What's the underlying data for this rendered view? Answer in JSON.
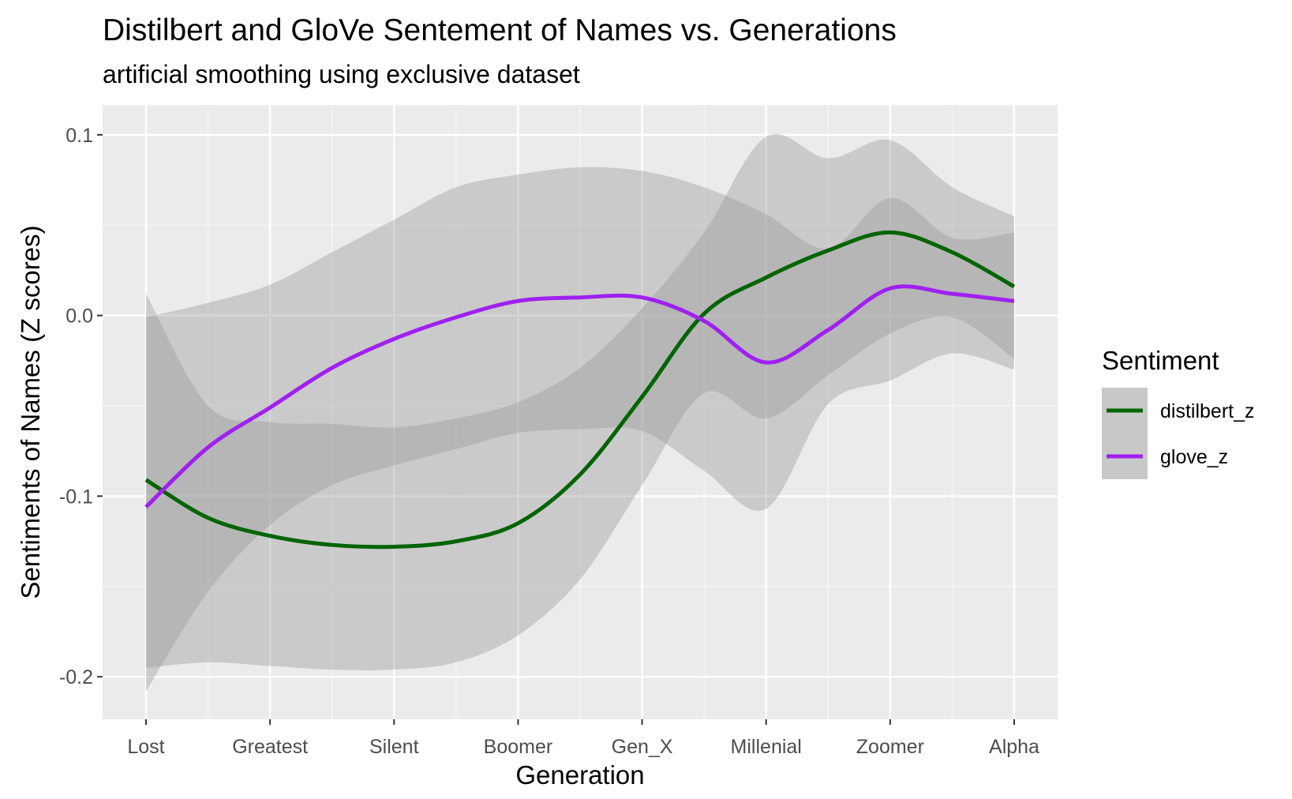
{
  "chart_data": {
    "type": "line",
    "title": "Distilbert and GloVe Sentement of Names vs. Generations",
    "subtitle": "artificial smoothing using exclusive dataset",
    "xlabel": "Generation",
    "ylabel": "Sentiments of Names (Z scores)",
    "categories": [
      "Lost",
      "Greatest",
      "Silent",
      "Boomer",
      "Gen_X",
      "Millenial",
      "Zoomer",
      "Alpha"
    ],
    "x": [
      1,
      1.5,
      2,
      2.5,
      3,
      3.5,
      4,
      4.5,
      5,
      5.5,
      6,
      6.5,
      7,
      7.5,
      8
    ],
    "ylim": [
      -0.2235,
      0.1165
    ],
    "yticks": [
      -0.2,
      -0.1,
      0.0,
      0.1
    ],
    "ytick_labels": [
      "-0.2",
      "-0.1",
      "0.0",
      "0.1"
    ],
    "grid": true,
    "series": [
      {
        "name": "distilbert_z",
        "color": "#006400",
        "values": [
          -0.091,
          -0.112,
          -0.122,
          -0.127,
          -0.128,
          -0.125,
          -0.115,
          -0.088,
          -0.045,
          0.001,
          0.021,
          0.036,
          0.046,
          0.035,
          0.016
        ],
        "lower": [
          -0.195,
          -0.192,
          -0.194,
          -0.196,
          -0.196,
          -0.192,
          -0.177,
          -0.146,
          -0.094,
          -0.043,
          -0.057,
          -0.033,
          -0.01,
          -0.001,
          -0.024
        ],
        "upper": [
          0.012,
          -0.05,
          -0.059,
          -0.06,
          -0.062,
          -0.057,
          -0.048,
          -0.029,
          0.004,
          0.046,
          0.099,
          0.087,
          0.097,
          0.071,
          0.055
        ]
      },
      {
        "name": "glove_z",
        "color": "#a020f0",
        "values": [
          -0.106,
          -0.073,
          -0.051,
          -0.029,
          -0.013,
          -0.001,
          0.008,
          0.01,
          0.01,
          -0.003,
          -0.026,
          -0.008,
          0.015,
          0.012,
          0.008
        ],
        "lower": [
          -0.208,
          -0.153,
          -0.116,
          -0.094,
          -0.083,
          -0.074,
          -0.065,
          -0.063,
          -0.064,
          -0.086,
          -0.107,
          -0.049,
          -0.036,
          -0.021,
          -0.03
        ],
        "upper": [
          -0.001,
          0.007,
          0.017,
          0.035,
          0.053,
          0.071,
          0.078,
          0.082,
          0.08,
          0.071,
          0.056,
          0.037,
          0.065,
          0.043,
          0.046
        ]
      }
    ],
    "legend": {
      "title": "Sentiment",
      "position": "right"
    },
    "colors": {
      "panel": "#ebebeb",
      "grid_major": "#ffffff",
      "ribbon": "#999999",
      "tick_text": "#4d4d4d"
    }
  }
}
